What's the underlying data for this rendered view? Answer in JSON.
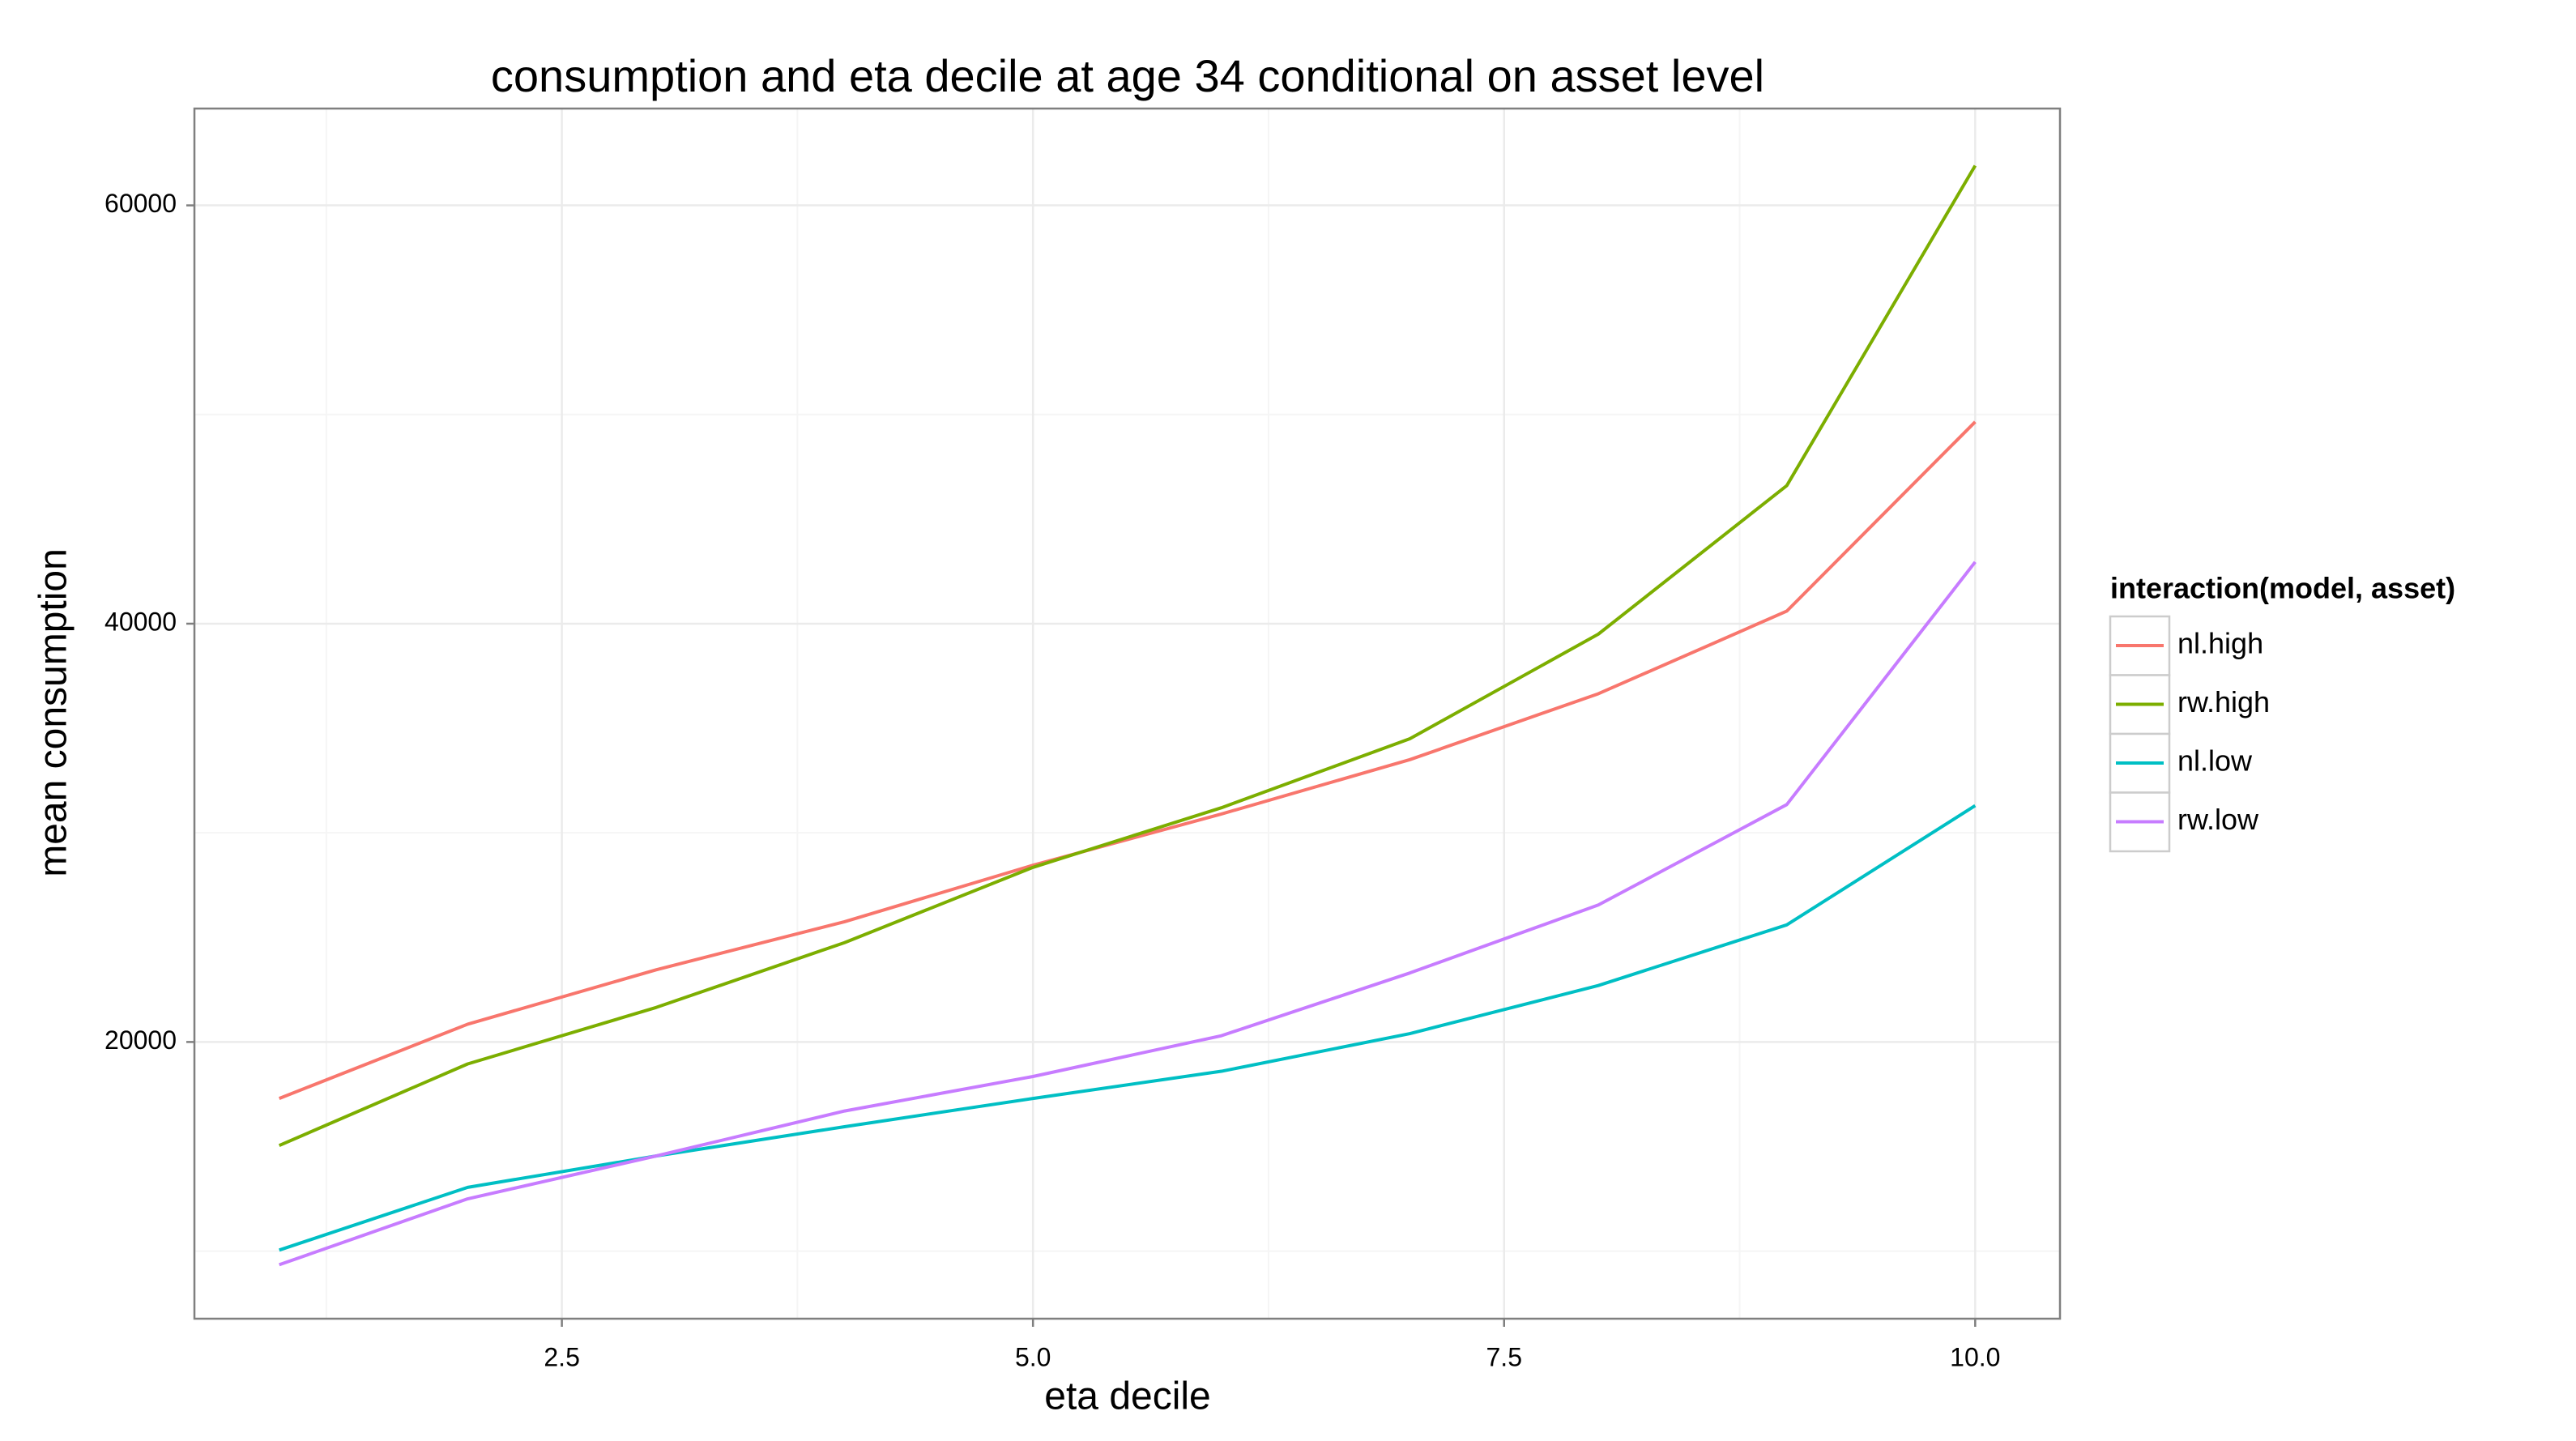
{
  "chart_data": {
    "type": "line",
    "title": "consumption and eta decile at age 34 conditional on asset level",
    "x_label": "eta decile",
    "y_label": "mean consumption",
    "x": [
      1,
      2,
      3,
      4,
      5,
      6,
      7,
      8,
      9,
      10
    ],
    "series": [
      {
        "name": "nl.high",
        "color": "#F8766D",
        "values": [
          17300,
          20850,
          23450,
          25750,
          28450,
          30900,
          33500,
          36650,
          40600,
          49650
        ]
      },
      {
        "name": "rw.high",
        "color": "#7CAE00",
        "values": [
          15050,
          18950,
          21650,
          24750,
          28350,
          31200,
          34500,
          39500,
          46600,
          61900
        ]
      },
      {
        "name": "nl.low",
        "color": "#00BFC4",
        "values": [
          10050,
          13050,
          14550,
          15950,
          17300,
          18600,
          20400,
          22700,
          25600,
          31300
        ]
      },
      {
        "name": "rw.low",
        "color": "#C77CFF",
        "values": [
          9350,
          12500,
          14550,
          16700,
          18350,
          20300,
          23300,
          26550,
          31350,
          42950
        ]
      }
    ],
    "xlim": [
      0.55,
      10.45
    ],
    "ylim": [
      6770,
      64630
    ],
    "xticks": [
      {
        "value": 2.5,
        "label": "2.5"
      },
      {
        "value": 5,
        "label": "5.0"
      },
      {
        "value": 7.5,
        "label": "7.5"
      },
      {
        "value": 10,
        "label": "10.0"
      }
    ],
    "yticks": [
      20000,
      40000,
      60000
    ],
    "grid": true,
    "legend_title": "interaction(model, asset)",
    "legend_position": "right"
  }
}
